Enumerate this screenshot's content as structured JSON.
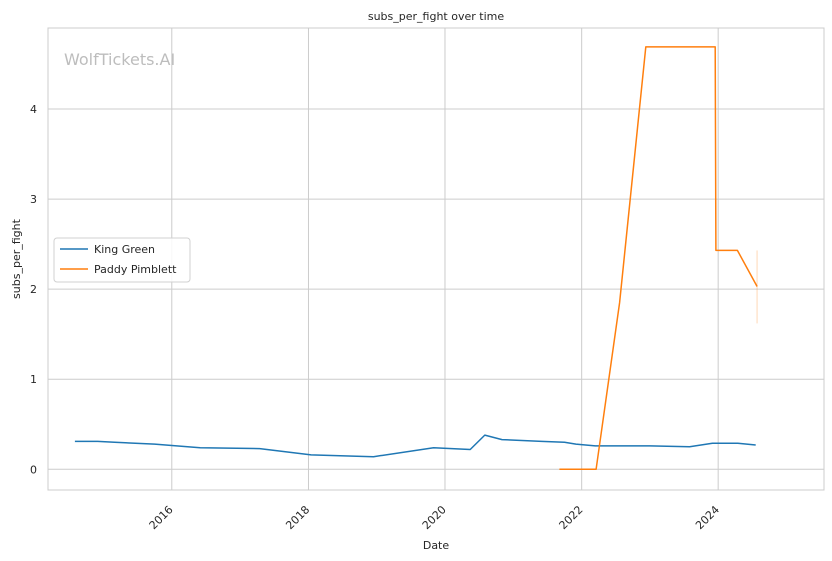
{
  "chart_data": {
    "type": "line",
    "title": "subs_per_fight over time",
    "xlabel": "Date",
    "ylabel": "subs_per_fight",
    "watermark": "WolfTickets.AI",
    "grid": true,
    "legend_position": "center-left",
    "xlim": [
      "2014-03-10",
      "2025-07-20"
    ],
    "ylim": [
      -0.23,
      4.9
    ],
    "x_ticks": [
      "2016-01-01",
      "2018-01-01",
      "2020-01-01",
      "2022-01-01",
      "2024-01-01"
    ],
    "x_tick_labels": [
      "2016",
      "2018",
      "2020",
      "2022",
      "2024"
    ],
    "y_ticks": [
      0,
      1,
      2,
      3,
      4
    ],
    "y_tick_labels": [
      "0",
      "1",
      "2",
      "3",
      "4"
    ],
    "series": [
      {
        "name": "King Green",
        "color": "#1f77b4",
        "points": [
          {
            "x": "2014-08-01",
            "y": 0.31
          },
          {
            "x": "2014-12-01",
            "y": 0.31
          },
          {
            "x": "2015-03-01",
            "y": 0.3
          },
          {
            "x": "2015-10-01",
            "y": 0.28
          },
          {
            "x": "2016-06-01",
            "y": 0.24
          },
          {
            "x": "2017-04-15",
            "y": 0.23
          },
          {
            "x": "2018-01-15",
            "y": 0.16
          },
          {
            "x": "2018-12-15",
            "y": 0.14
          },
          {
            "x": "2019-11-01",
            "y": 0.24
          },
          {
            "x": "2020-05-15",
            "y": 0.22
          },
          {
            "x": "2020-08-01",
            "y": 0.38
          },
          {
            "x": "2020-11-01",
            "y": 0.33
          },
          {
            "x": "2021-06-01",
            "y": 0.31
          },
          {
            "x": "2021-10-01",
            "y": 0.3
          },
          {
            "x": "2021-12-01",
            "y": 0.28
          },
          {
            "x": "2022-03-15",
            "y": 0.26
          },
          {
            "x": "2023-01-01",
            "y": 0.26
          },
          {
            "x": "2023-08-01",
            "y": 0.25
          },
          {
            "x": "2023-12-01",
            "y": 0.29
          },
          {
            "x": "2024-04-15",
            "y": 0.29
          },
          {
            "x": "2024-07-20",
            "y": 0.27
          }
        ]
      },
      {
        "name": "Paddy Pimblett",
        "color": "#ff7f0e",
        "points": [
          {
            "x": "2021-09-04",
            "y": 0.0
          },
          {
            "x": "2022-03-19",
            "y": 0.0
          },
          {
            "x": "2022-07-23",
            "y": 1.85
          },
          {
            "x": "2022-12-10",
            "y": 4.69
          },
          {
            "x": "2023-12-16",
            "y": 4.69
          },
          {
            "x": "2023-12-20",
            "y": 2.43
          },
          {
            "x": "2024-04-13",
            "y": 2.43
          },
          {
            "x": "2024-07-27",
            "y": 2.03
          }
        ],
        "error_bar": {
          "x": "2024-07-27",
          "low": 1.62,
          "high": 2.43
        }
      }
    ]
  }
}
